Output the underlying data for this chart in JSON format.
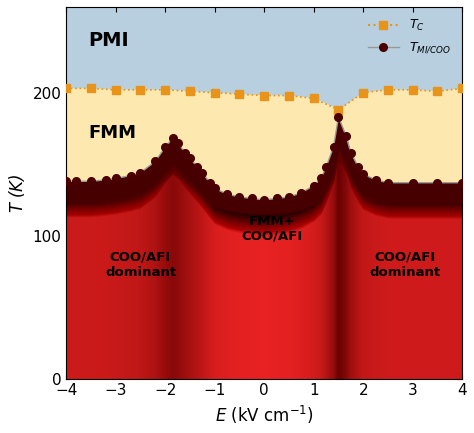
{
  "xlim": [
    -4,
    4
  ],
  "ylim": [
    0,
    260
  ],
  "xlabel": "E (kV cm$^{-1}$)",
  "ylabel": "T (K)",
  "bg_color_top": "#b8cfe0",
  "bg_color_fmm": "#fde8b0",
  "title": "",
  "TC_x": [
    -4.0,
    -3.5,
    -3.0,
    -2.5,
    -2.0,
    -1.5,
    -1.0,
    -0.5,
    0.0,
    0.5,
    1.0,
    1.5,
    2.0,
    2.5,
    3.0,
    3.5,
    4.0
  ],
  "TC_y": [
    203,
    203,
    202,
    202,
    202,
    201,
    200,
    199,
    198,
    198,
    196,
    188,
    200,
    202,
    202,
    201,
    203
  ],
  "TMI_x": [
    -4.0,
    -3.8,
    -3.5,
    -3.2,
    -3.0,
    -2.7,
    -2.5,
    -2.2,
    -2.0,
    -1.85,
    -1.75,
    -1.6,
    -1.5,
    -1.35,
    -1.25,
    -1.1,
    -1.0,
    -0.75,
    -0.5,
    -0.25,
    0.0,
    0.25,
    0.5,
    0.75,
    1.0,
    1.15,
    1.25,
    1.4,
    1.5,
    1.65,
    1.75,
    1.9,
    2.0,
    2.25,
    2.5,
    3.0,
    3.5,
    4.0
  ],
  "TMI_y": [
    138,
    138,
    138,
    139,
    140,
    142,
    144,
    152,
    162,
    168,
    165,
    158,
    154,
    148,
    144,
    137,
    133,
    129,
    127,
    126,
    125,
    126,
    127,
    130,
    135,
    140,
    148,
    162,
    183,
    170,
    158,
    148,
    143,
    139,
    137,
    137,
    137,
    137
  ],
  "legend_TC_color": "#e8941a",
  "legend_TMI_color": "#4a0000",
  "xticks": [
    -4,
    -3,
    -2,
    -1,
    0,
    1,
    2,
    3,
    4
  ],
  "yticks": [
    0,
    100,
    200
  ],
  "red_bright": "#e82020",
  "red_dark": "#6a0000"
}
